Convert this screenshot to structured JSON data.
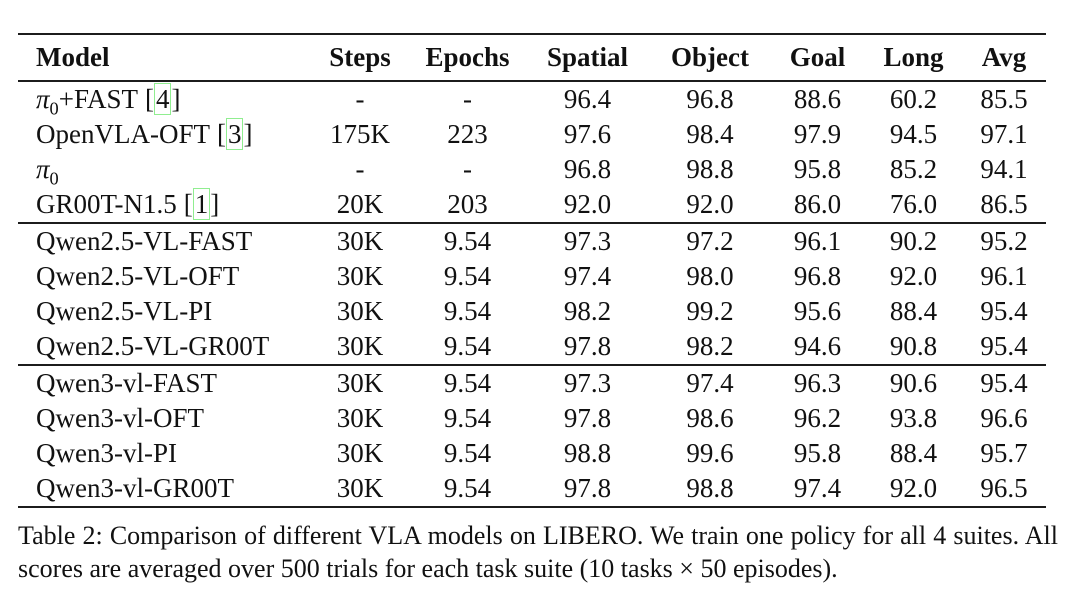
{
  "colors": {
    "background": "#ffffff",
    "text": "#111111",
    "rule": "#1c1c1c",
    "cite_border": "#90ee90"
  },
  "table": {
    "cite_open": "[",
    "cite_close": "]",
    "columns": [
      {
        "label": "Model"
      },
      {
        "label": "Steps"
      },
      {
        "label": "Epochs"
      },
      {
        "label": "Spatial"
      },
      {
        "label": "Object"
      },
      {
        "label": "Goal"
      },
      {
        "label": "Long"
      },
      {
        "label": "Avg"
      }
    ],
    "groups": [
      {
        "rows": [
          {
            "model": {
              "pre": "π",
              "sub": "0",
              "post": "+FAST",
              "cite": "4"
            },
            "steps": "-",
            "epochs": "-",
            "spatial": "96.4",
            "object": "96.8",
            "goal": "88.6",
            "long": "60.2",
            "avg": "85.5"
          },
          {
            "model": {
              "pre": "OpenVLA-OFT",
              "sub": "",
              "post": "",
              "cite": "3"
            },
            "steps": "175K",
            "epochs": "223",
            "spatial": "97.6",
            "object": "98.4",
            "goal": "97.9",
            "long": "94.5",
            "avg": "97.1"
          },
          {
            "model": {
              "pre": "π",
              "sub": "0",
              "post": "",
              "cite": ""
            },
            "steps": "-",
            "epochs": "-",
            "spatial": "96.8",
            "object": "98.8",
            "goal": "95.8",
            "long": "85.2",
            "avg": "94.1"
          },
          {
            "model": {
              "pre": "GR00T-N1.5",
              "sub": "",
              "post": "",
              "cite": "1"
            },
            "steps": "20K",
            "epochs": "203",
            "spatial": "92.0",
            "object": "92.0",
            "goal": "86.0",
            "long": "76.0",
            "avg": "86.5"
          }
        ]
      },
      {
        "rows": [
          {
            "model": {
              "pre": "Qwen2.5-VL-FAST",
              "sub": "",
              "post": "",
              "cite": ""
            },
            "steps": "30K",
            "epochs": "9.54",
            "spatial": "97.3",
            "object": "97.2",
            "goal": "96.1",
            "long": "90.2",
            "avg": "95.2"
          },
          {
            "model": {
              "pre": "Qwen2.5-VL-OFT",
              "sub": "",
              "post": "",
              "cite": ""
            },
            "steps": "30K",
            "epochs": "9.54",
            "spatial": "97.4",
            "object": "98.0",
            "goal": "96.8",
            "long": "92.0",
            "avg": "96.1"
          },
          {
            "model": {
              "pre": "Qwen2.5-VL-PI",
              "sub": "",
              "post": "",
              "cite": ""
            },
            "steps": "30K",
            "epochs": "9.54",
            "spatial": "98.2",
            "object": "99.2",
            "goal": "95.6",
            "long": "88.4",
            "avg": "95.4"
          },
          {
            "model": {
              "pre": "Qwen2.5-VL-GR00T",
              "sub": "",
              "post": "",
              "cite": ""
            },
            "steps": "30K",
            "epochs": "9.54",
            "spatial": "97.8",
            "object": "98.2",
            "goal": "94.6",
            "long": "90.8",
            "avg": "95.4"
          }
        ]
      },
      {
        "rows": [
          {
            "model": {
              "pre": "Qwen3-vl-FAST",
              "sub": "",
              "post": "",
              "cite": ""
            },
            "steps": "30K",
            "epochs": "9.54",
            "spatial": "97.3",
            "object": "97.4",
            "goal": "96.3",
            "long": "90.6",
            "avg": "95.4"
          },
          {
            "model": {
              "pre": "Qwen3-vl-OFT",
              "sub": "",
              "post": "",
              "cite": ""
            },
            "steps": "30K",
            "epochs": "9.54",
            "spatial": "97.8",
            "object": "98.6",
            "goal": "96.2",
            "long": "93.8",
            "avg": "96.6"
          },
          {
            "model": {
              "pre": "Qwen3-vl-PI",
              "sub": "",
              "post": "",
              "cite": ""
            },
            "steps": "30K",
            "epochs": "9.54",
            "spatial": "98.8",
            "object": "99.6",
            "goal": "95.8",
            "long": "88.4",
            "avg": "95.7"
          },
          {
            "model": {
              "pre": "Qwen3-vl-GR00T",
              "sub": "",
              "post": "",
              "cite": ""
            },
            "steps": "30K",
            "epochs": "9.54",
            "spatial": "97.8",
            "object": "98.8",
            "goal": "97.4",
            "long": "92.0",
            "avg": "96.5"
          }
        ]
      }
    ]
  },
  "caption": {
    "line1": "Table 2: Comparison of different VLA models on LIBERO. We train one policy for all 4 suites. All",
    "line2": "scores are averaged over 500 trials for each task suite (10 tasks × 50 episodes)."
  }
}
